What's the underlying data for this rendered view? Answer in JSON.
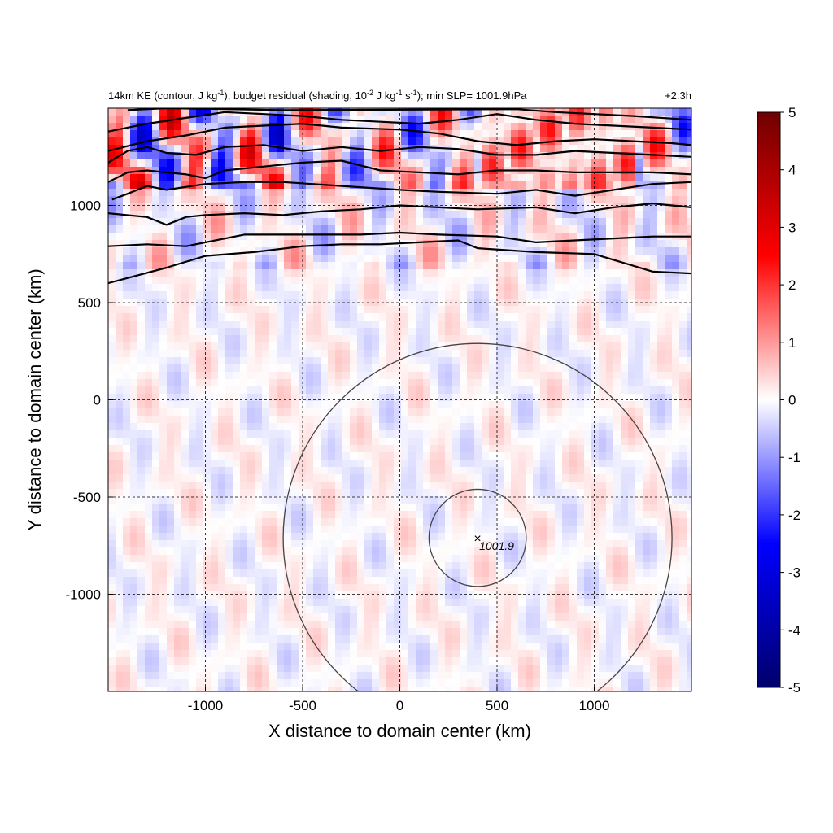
{
  "chart_data": {
    "type": "heatmap",
    "title": {
      "parts": [
        {
          "t": "14km KE (contour, J kg"
        },
        {
          "t": "-1",
          "sup": true
        },
        {
          "t": "), budget residual (shading, 10"
        },
        {
          "t": "-2",
          "sup": true
        },
        {
          "t": " J kg"
        },
        {
          "t": "-1",
          "sup": true
        },
        {
          "t": " s"
        },
        {
          "t": "-1",
          "sup": true
        },
        {
          "t": "); min SLP= 1001.9hPa"
        }
      ]
    },
    "time_label": "+2.3h",
    "xlabel": "X distance to domain center (km)",
    "ylabel": "Y distance to domain center (km)",
    "xlim": [
      -1500,
      1500
    ],
    "ylim": [
      -1500,
      1500
    ],
    "xticks": [
      -1000,
      -500,
      0,
      500,
      1000
    ],
    "yticks": [
      -1000,
      -500,
      0,
      500,
      1000
    ],
    "grid": true,
    "colorbar": {
      "min": -5,
      "max": 5,
      "ticks": [
        5,
        4,
        3,
        2,
        1,
        0,
        -1,
        -2,
        -3,
        -4,
        -5
      ],
      "colors": [
        "#00006b",
        "#0000ff",
        "#ffffff",
        "#ff0000",
        "#700000"
      ]
    },
    "storm_center": {
      "x": 400,
      "y": -710,
      "label": "1001.9"
    },
    "circles_radius_km": [
      250,
      1000
    ],
    "contours": [
      {
        "points": [
          [
            -1500,
            600
          ],
          [
            -1200,
            680
          ],
          [
            -1000,
            740
          ],
          [
            -750,
            760
          ],
          [
            -500,
            790
          ],
          [
            -300,
            800
          ],
          [
            -100,
            800
          ],
          [
            300,
            820
          ],
          [
            400,
            780
          ],
          [
            700,
            760
          ],
          [
            1000,
            750
          ],
          [
            1300,
            660
          ],
          [
            1500,
            650
          ]
        ]
      },
      {
        "points": [
          [
            -1500,
            790
          ],
          [
            -1300,
            800
          ],
          [
            -1100,
            790
          ],
          [
            -1000,
            810
          ],
          [
            -800,
            850
          ],
          [
            -600,
            850
          ],
          [
            -200,
            850
          ],
          [
            0,
            860
          ],
          [
            200,
            850
          ],
          [
            500,
            840
          ],
          [
            700,
            810
          ],
          [
            900,
            820
          ],
          [
            1100,
            830
          ],
          [
            1300,
            840
          ],
          [
            1500,
            840
          ]
        ]
      },
      {
        "points": [
          [
            -1500,
            960
          ],
          [
            -1300,
            940
          ],
          [
            -1200,
            900
          ],
          [
            -1100,
            940
          ],
          [
            -1000,
            950
          ],
          [
            -800,
            960
          ],
          [
            -600,
            950
          ],
          [
            -400,
            970
          ],
          [
            -200,
            980
          ],
          [
            0,
            1000
          ],
          [
            200,
            990
          ],
          [
            400,
            980
          ],
          [
            700,
            990
          ],
          [
            900,
            960
          ],
          [
            1100,
            990
          ],
          [
            1300,
            1010
          ],
          [
            1500,
            990
          ]
        ]
      },
      {
        "points": [
          [
            -1480,
            1030
          ],
          [
            -1400,
            1060
          ],
          [
            -1300,
            1100
          ],
          [
            -1200,
            1080
          ],
          [
            -1000,
            1110
          ],
          [
            -800,
            1120
          ],
          [
            -600,
            1120
          ],
          [
            -300,
            1100
          ],
          [
            0,
            1080
          ],
          [
            200,
            1070
          ],
          [
            500,
            1060
          ],
          [
            700,
            1080
          ],
          [
            900,
            1050
          ],
          [
            1100,
            1080
          ],
          [
            1300,
            1110
          ],
          [
            1500,
            1120
          ]
        ]
      },
      {
        "points": [
          [
            -1500,
            1120
          ],
          [
            -1400,
            1170
          ],
          [
            -1300,
            1180
          ],
          [
            -1100,
            1160
          ],
          [
            -1000,
            1140
          ],
          [
            -900,
            1180
          ],
          [
            -700,
            1200
          ],
          [
            -500,
            1220
          ],
          [
            -300,
            1230
          ],
          [
            -100,
            1180
          ],
          [
            100,
            1170
          ],
          [
            300,
            1160
          ],
          [
            500,
            1180
          ],
          [
            700,
            1180
          ],
          [
            900,
            1170
          ],
          [
            1100,
            1170
          ],
          [
            1300,
            1170
          ],
          [
            1500,
            1160
          ]
        ]
      },
      {
        "points": [
          [
            -1500,
            1220
          ],
          [
            -1400,
            1280
          ],
          [
            -1300,
            1300
          ],
          [
            -1200,
            1270
          ],
          [
            -1050,
            1260
          ],
          [
            -900,
            1300
          ],
          [
            -700,
            1310
          ],
          [
            -500,
            1280
          ],
          [
            -300,
            1300
          ],
          [
            -100,
            1280
          ],
          [
            100,
            1300
          ],
          [
            300,
            1290
          ],
          [
            500,
            1260
          ],
          [
            700,
            1260
          ],
          [
            900,
            1280
          ],
          [
            1100,
            1270
          ],
          [
            1300,
            1260
          ],
          [
            1500,
            1250
          ]
        ]
      },
      {
        "points": [
          [
            -1500,
            1280
          ],
          [
            -1300,
            1330
          ],
          [
            -1100,
            1360
          ],
          [
            -900,
            1400
          ],
          [
            -700,
            1410
          ],
          [
            -500,
            1420
          ],
          [
            -300,
            1400
          ],
          [
            0,
            1390
          ],
          [
            200,
            1370
          ],
          [
            400,
            1330
          ],
          [
            600,
            1310
          ],
          [
            800,
            1330
          ],
          [
            1000,
            1340
          ],
          [
            1200,
            1330
          ],
          [
            1400,
            1320
          ],
          [
            1500,
            1310
          ]
        ]
      },
      {
        "points": [
          [
            -1500,
            1380
          ],
          [
            -1300,
            1420
          ],
          [
            -1100,
            1450
          ],
          [
            -900,
            1480
          ],
          [
            -700,
            1470
          ],
          [
            -500,
            1460
          ],
          [
            -300,
            1440
          ],
          [
            -100,
            1430
          ],
          [
            100,
            1420
          ],
          [
            300,
            1440
          ],
          [
            500,
            1470
          ],
          [
            700,
            1440
          ],
          [
            900,
            1420
          ],
          [
            1100,
            1410
          ],
          [
            1300,
            1400
          ],
          [
            1500,
            1390
          ]
        ]
      },
      {
        "points": [
          [
            -1400,
            1490
          ],
          [
            -1200,
            1500
          ],
          [
            -900,
            1495
          ],
          [
            -600,
            1490
          ],
          [
            600,
            1495
          ],
          [
            800,
            1480
          ],
          [
            1000,
            1470
          ],
          [
            1200,
            1460
          ],
          [
            1500,
            1440
          ]
        ]
      }
    ]
  }
}
